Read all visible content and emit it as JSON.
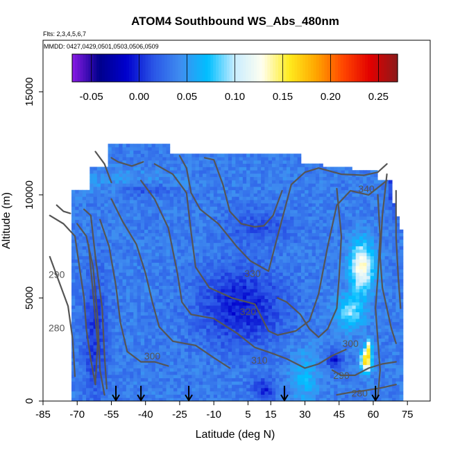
{
  "chart_data": {
    "type": "heatmap",
    "title": "ATOM4 Southbound WS_Abs_480nm",
    "flights_note": "Flts: 2,3,4,5,6,7",
    "dates_note": "MMDD: 0427,0429,0501,0503,0506,0509",
    "xlabel": "Latitude (deg N)",
    "ylabel": "Altitude (m)",
    "xlim": [
      -85,
      85
    ],
    "ylim": [
      0,
      17500
    ],
    "x_ticks": [
      -85,
      -70,
      -55,
      -40,
      -25,
      -10,
      5,
      15,
      30,
      45,
      60,
      75
    ],
    "x_tick_labels": [
      "-85",
      "-70",
      "-55",
      "-40",
      "-25",
      "-10",
      "5",
      "15",
      "30",
      "45",
      "60",
      "75"
    ],
    "y_ticks": [
      0,
      5000,
      10000,
      15000
    ],
    "y_tick_labels": [
      "0",
      "5000",
      "10000",
      "15000"
    ],
    "colorbar": {
      "min": -0.07,
      "max": 0.27,
      "ticks": [
        -0.05,
        0.0,
        0.05,
        0.1,
        0.15,
        0.2,
        0.25
      ],
      "tick_labels": [
        "-0.05",
        "0.00",
        "0.05",
        "0.10",
        "0.15",
        "0.20",
        "0.25"
      ],
      "colors": [
        "#8a1be6",
        "#00008b",
        "#0000cd",
        "#2a55e6",
        "#3f8ef0",
        "#00bfff",
        "#c8ecff",
        "#fffff0",
        "#ffec1e",
        "#ffa500",
        "#ff4500",
        "#e10000",
        "#8b1a1a"
      ]
    },
    "grid": false,
    "legend": "none",
    "contour_labels": [
      {
        "value": "340",
        "lat": 57,
        "alt": 10250
      },
      {
        "value": "330",
        "lat": 7,
        "alt": 6150
      },
      {
        "value": "320",
        "lat": 5,
        "alt": 4300
      },
      {
        "value": "310",
        "lat": 10,
        "alt": 1950
      },
      {
        "value": "300",
        "lat": -37,
        "alt": 2150
      },
      {
        "value": "300",
        "lat": 50,
        "alt": 2750
      },
      {
        "value": "290",
        "lat": -79,
        "alt": 6100
      },
      {
        "value": "290",
        "lat": 46,
        "alt": 1200
      },
      {
        "value": "280",
        "lat": -79,
        "alt": 3500
      },
      {
        "value": "280",
        "lat": 54,
        "alt": 350
      }
    ],
    "profile_markers_lat": [
      -53,
      -42,
      -21,
      21,
      61
    ]
  }
}
